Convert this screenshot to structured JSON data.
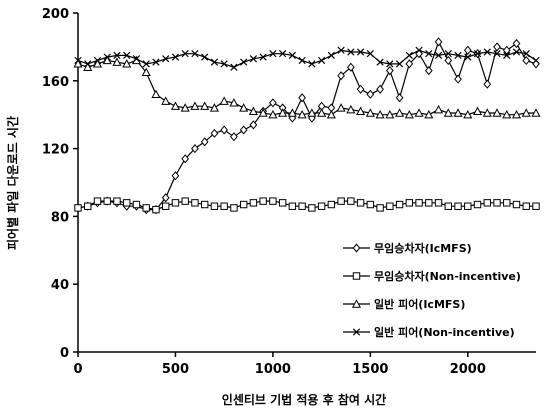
{
  "chart_data": {
    "type": "line",
    "title": "",
    "xlabel": "인센티브 기법 적용 후 참여 시간",
    "ylabel": "피어별 파일 다운로드 시간",
    "xlim": [
      0,
      2350
    ],
    "ylim": [
      0,
      200
    ],
    "xticks": [
      0,
      500,
      1000,
      1500,
      2000
    ],
    "yticks": [
      0,
      40,
      80,
      120,
      160,
      200
    ],
    "x_tick_labels": [
      "0",
      "500",
      "1000",
      "1500",
      "2000"
    ],
    "y_tick_labels": [
      "0",
      "40",
      "80",
      "120",
      "160",
      "200"
    ],
    "grid": false,
    "legend_position": "right",
    "x": [
      0,
      50,
      100,
      150,
      200,
      250,
      300,
      350,
      400,
      450,
      500,
      550,
      600,
      650,
      700,
      750,
      800,
      850,
      900,
      950,
      1000,
      1050,
      1100,
      1150,
      1200,
      1250,
      1300,
      1350,
      1400,
      1450,
      1500,
      1550,
      1600,
      1650,
      1700,
      1750,
      1800,
      1850,
      1900,
      1950,
      2000,
      2050,
      2100,
      2150,
      2200,
      2250,
      2300,
      2350
    ],
    "series": [
      {
        "name": "무임승차자(IcMFS)",
        "marker": "diamond",
        "values": [
          85,
          86,
          88,
          89,
          88,
          86,
          86,
          84,
          84,
          91,
          104,
          114,
          120,
          124,
          129,
          131,
          127,
          131,
          134,
          142,
          147,
          144,
          138,
          150,
          138,
          145,
          144,
          163,
          168,
          155,
          152,
          155,
          166,
          150,
          170,
          176,
          166,
          183,
          172,
          161,
          178,
          176,
          158,
          180,
          178,
          182,
          172,
          170
        ]
      },
      {
        "name": "무임승차자(Non-incentive)",
        "marker": "square",
        "values": [
          85,
          86,
          89,
          89,
          89,
          88,
          87,
          85,
          84,
          86,
          88,
          89,
          88,
          87,
          86,
          86,
          85,
          87,
          88,
          89,
          89,
          88,
          86,
          86,
          85,
          86,
          87,
          89,
          89,
          88,
          87,
          85,
          86,
          87,
          88,
          88,
          88,
          88,
          86,
          86,
          86,
          87,
          88,
          88,
          88,
          87,
          86,
          86
        ]
      },
      {
        "name": "일반 피어(IcMFS)",
        "marker": "triangle",
        "values": [
          170,
          168,
          170,
          172,
          171,
          170,
          172,
          165,
          152,
          148,
          145,
          144,
          145,
          145,
          144,
          148,
          147,
          144,
          142,
          141,
          140,
          141,
          141,
          140,
          141,
          141,
          140,
          144,
          143,
          142,
          141,
          140,
          140,
          141,
          140,
          141,
          140,
          143,
          141,
          141,
          140,
          142,
          141,
          141,
          140,
          140,
          141,
          141
        ]
      },
      {
        "name": "일반 피어(Non-incentive)",
        "marker": "x",
        "values": [
          172,
          170,
          172,
          174,
          175,
          175,
          173,
          170,
          171,
          173,
          174,
          176,
          176,
          174,
          171,
          170,
          168,
          171,
          173,
          174,
          176,
          176,
          175,
          172,
          170,
          172,
          175,
          178,
          177,
          177,
          176,
          171,
          170,
          170,
          175,
          178,
          176,
          175,
          176,
          175,
          174,
          176,
          177,
          176,
          175,
          177,
          176,
          172
        ]
      }
    ]
  }
}
